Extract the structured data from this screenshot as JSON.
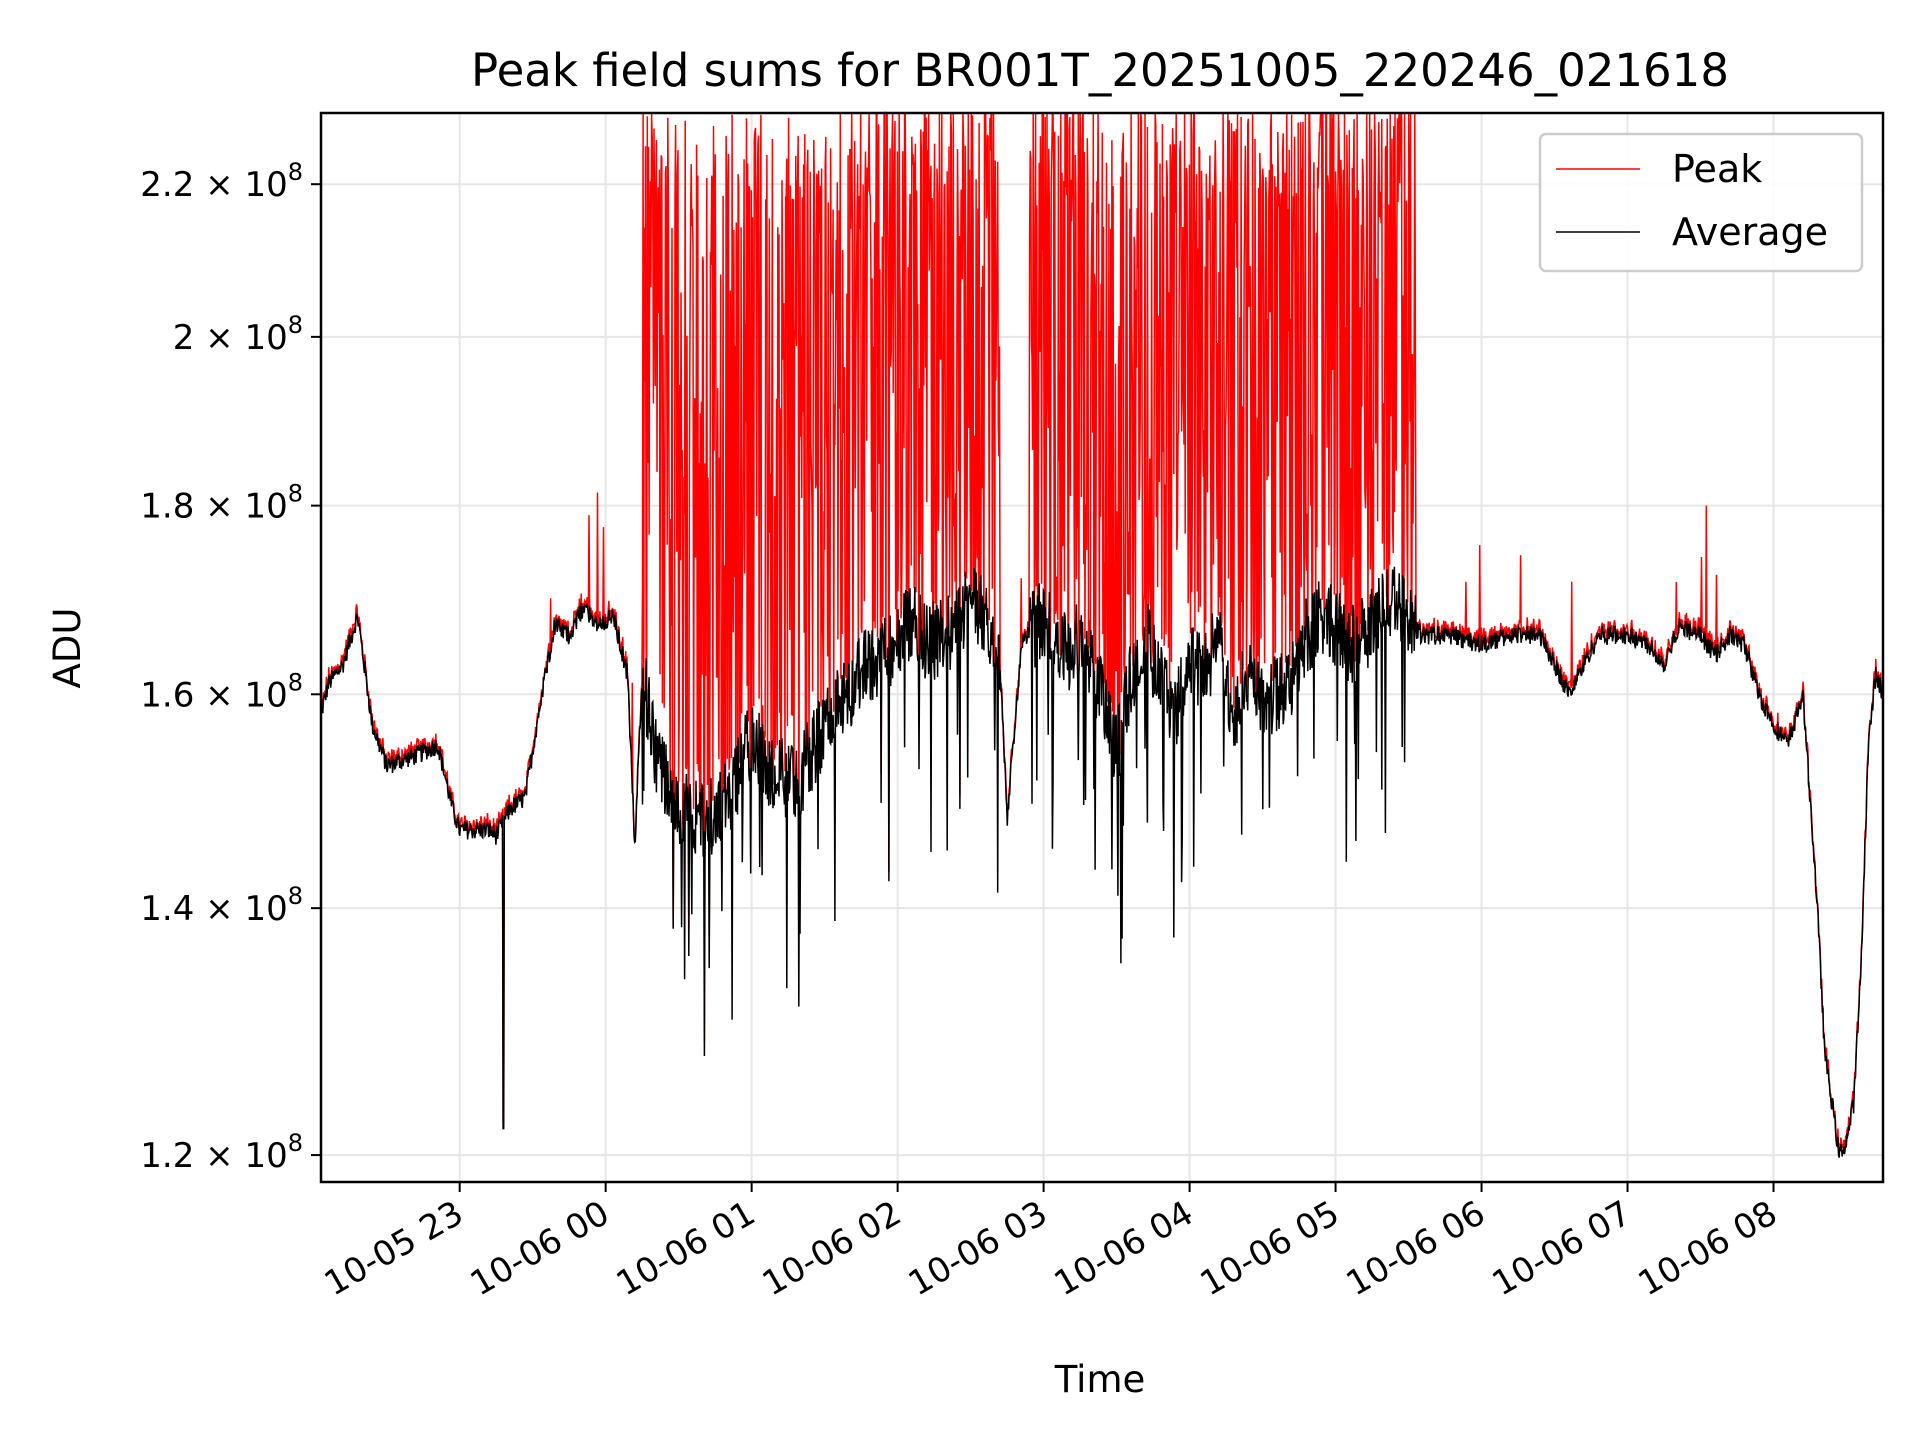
{
  "chart_data": {
    "type": "line",
    "title": "Peak field sums for BR001T_20251005_220246_021618",
    "xlabel": "Time",
    "ylabel": "ADU",
    "yscale": "log",
    "ylim": [
      118000000,
      230000000
    ],
    "xlim": [
      22.05,
      32.75
    ],
    "grid": true,
    "legend_position": "top-right",
    "x_ticks": [
      {
        "value": 23,
        "label": "10-05 23"
      },
      {
        "value": 24,
        "label": "10-06 00"
      },
      {
        "value": 25,
        "label": "10-06 01"
      },
      {
        "value": 26,
        "label": "10-06 02"
      },
      {
        "value": 27,
        "label": "10-06 03"
      },
      {
        "value": 28,
        "label": "10-06 04"
      },
      {
        "value": 29,
        "label": "10-06 05"
      },
      {
        "value": 30,
        "label": "10-06 06"
      },
      {
        "value": 31,
        "label": "10-06 07"
      },
      {
        "value": 32,
        "label": "10-06 08"
      }
    ],
    "y_ticks": [
      {
        "value": 120000000,
        "mantissa": "1.2",
        "base": "10",
        "exp": "8"
      },
      {
        "value": 140000000,
        "mantissa": "1.4",
        "base": "10",
        "exp": "8"
      },
      {
        "value": 160000000,
        "mantissa": "1.6",
        "base": "10",
        "exp": "8"
      },
      {
        "value": 180000000,
        "mantissa": "1.8",
        "base": "10",
        "exp": "8"
      },
      {
        "value": 200000000,
        "mantissa": "2",
        "base": "10",
        "exp": "8"
      },
      {
        "value": 220000000,
        "mantissa": "2.2",
        "base": "10",
        "exp": "8"
      }
    ],
    "times_unit": "hours since 2025-10-05 00:00",
    "baseline_knots": [
      [
        22.05,
        158
      ],
      [
        22.1,
        161
      ],
      [
        22.2,
        163
      ],
      [
        22.3,
        168
      ],
      [
        22.4,
        157
      ],
      [
        22.5,
        153
      ],
      [
        22.7,
        154
      ],
      [
        22.85,
        155
      ],
      [
        22.95,
        149
      ],
      [
        23.0,
        147
      ],
      [
        23.2,
        147
      ],
      [
        23.25,
        146.5
      ],
      [
        23.35,
        149
      ],
      [
        23.45,
        150
      ],
      [
        23.55,
        159
      ],
      [
        23.65,
        167
      ],
      [
        23.75,
        166
      ],
      [
        23.85,
        169
      ],
      [
        23.95,
        167
      ],
      [
        24.05,
        168
      ],
      [
        24.15,
        162
      ],
      [
        24.2,
        145
      ],
      [
        24.25,
        162
      ],
      [
        24.35,
        154
      ],
      [
        24.5,
        149
      ],
      [
        24.7,
        148
      ],
      [
        24.8,
        149
      ],
      [
        24.9,
        152
      ],
      [
        25.0,
        156
      ],
      [
        25.1,
        153
      ],
      [
        25.2,
        152
      ],
      [
        25.3,
        151
      ],
      [
        25.4,
        154
      ],
      [
        25.5,
        157
      ],
      [
        25.6,
        159
      ],
      [
        25.7,
        161
      ],
      [
        25.8,
        163
      ],
      [
        25.9,
        164
      ],
      [
        26.0,
        165
      ],
      [
        26.1,
        168
      ],
      [
        26.2,
        165
      ],
      [
        26.3,
        166
      ],
      [
        26.4,
        167
      ],
      [
        26.5,
        170
      ],
      [
        26.6,
        168
      ],
      [
        26.7,
        163
      ],
      [
        26.75,
        148
      ],
      [
        26.85,
        165
      ],
      [
        27.0,
        168
      ],
      [
        27.1,
        166
      ],
      [
        27.15,
        164
      ],
      [
        27.25,
        166
      ],
      [
        27.4,
        160
      ],
      [
        27.5,
        154
      ],
      [
        27.6,
        162
      ],
      [
        27.7,
        166
      ],
      [
        27.8,
        161
      ],
      [
        27.9,
        158
      ],
      [
        28.0,
        164
      ],
      [
        28.1,
        162
      ],
      [
        28.2,
        166
      ],
      [
        28.3,
        158
      ],
      [
        28.4,
        162
      ],
      [
        28.5,
        159
      ],
      [
        28.6,
        160
      ],
      [
        28.7,
        162
      ],
      [
        28.8,
        166
      ],
      [
        28.9,
        168
      ],
      [
        29.0,
        167
      ],
      [
        29.1,
        165
      ],
      [
        29.2,
        166
      ],
      [
        29.3,
        168
      ],
      [
        29.4,
        170
      ],
      [
        29.5,
        167
      ],
      [
        29.6,
        166
      ],
      [
        29.8,
        166
      ],
      [
        30.0,
        165
      ],
      [
        30.2,
        166
      ],
      [
        30.4,
        166
      ],
      [
        30.5,
        163
      ],
      [
        30.6,
        160
      ],
      [
        30.7,
        163
      ],
      [
        30.8,
        166
      ],
      [
        31.0,
        166
      ],
      [
        31.15,
        165
      ],
      [
        31.25,
        163
      ],
      [
        31.35,
        167
      ],
      [
        31.5,
        166
      ],
      [
        31.6,
        164
      ],
      [
        31.7,
        166
      ],
      [
        31.8,
        165
      ],
      [
        31.9,
        160
      ],
      [
        32.0,
        157
      ],
      [
        32.1,
        155
      ],
      [
        32.2,
        160
      ],
      [
        32.25,
        150
      ],
      [
        32.3,
        140
      ],
      [
        32.35,
        128
      ],
      [
        32.4,
        124
      ],
      [
        32.45,
        120
      ],
      [
        32.5,
        121
      ],
      [
        32.55,
        124
      ],
      [
        32.6,
        135
      ],
      [
        32.65,
        155
      ],
      [
        32.7,
        162
      ],
      [
        32.75,
        160
      ]
    ],
    "series": [
      {
        "name": "Peak",
        "color": "#ff0000",
        "noisy_intervals": [
          [
            24.25,
            26.7
          ],
          [
            26.9,
            29.55
          ]
        ],
        "spike_max": 230000000
      },
      {
        "name": "Average",
        "color": "#000000"
      }
    ]
  }
}
